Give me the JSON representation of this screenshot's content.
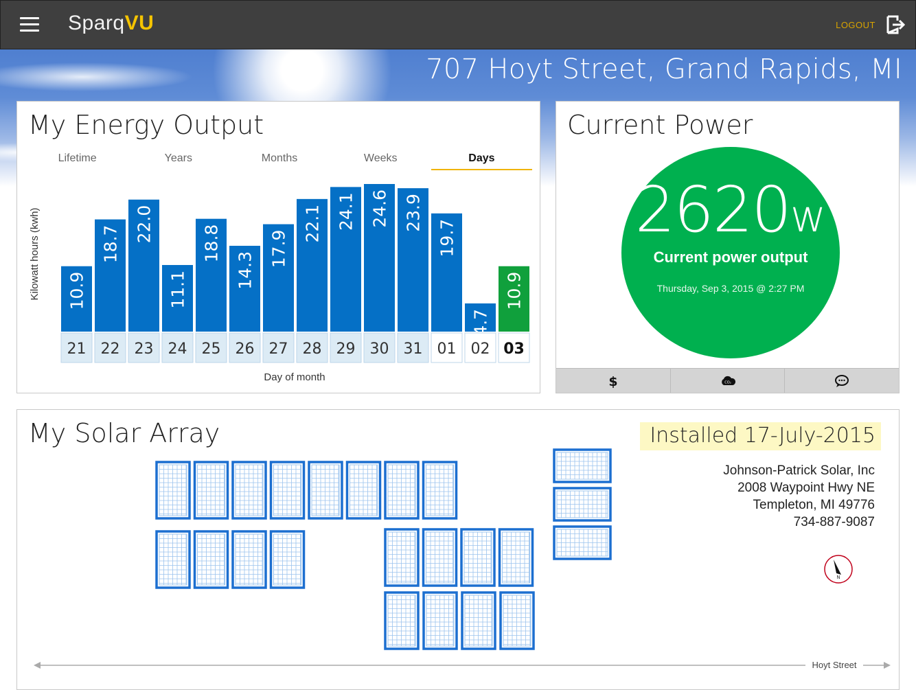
{
  "header": {
    "brand_prefix": "Sparq",
    "brand_suffix": "VU",
    "logout_label": "LOGOUT"
  },
  "address": "707 Hoyt Street, Grand Rapids, MI",
  "energy": {
    "title": "My Energy Output",
    "tabs": [
      {
        "label": "Lifetime",
        "active": false
      },
      {
        "label": "Years",
        "active": false
      },
      {
        "label": "Months",
        "active": false
      },
      {
        "label": "Weeks",
        "active": false
      },
      {
        "label": "Days",
        "active": true
      }
    ]
  },
  "chart_data": {
    "type": "bar",
    "categories": [
      "21",
      "22",
      "23",
      "24",
      "25",
      "26",
      "27",
      "28",
      "29",
      "30",
      "31",
      "01",
      "02",
      "03"
    ],
    "values": [
      10.9,
      18.7,
      22.0,
      11.1,
      18.8,
      14.3,
      17.9,
      22.1,
      24.1,
      24.6,
      23.9,
      19.7,
      4.7,
      10.9
    ],
    "highlight_index": 13,
    "xlabel": "Day of month",
    "ylabel": "Kilowatt hours (kwh)",
    "colors": {
      "bar": "#0570c6",
      "highlight": "#10a03c"
    }
  },
  "power": {
    "title": "Current Power",
    "value": "2620",
    "unit": "w",
    "label": "Current power output",
    "timestamp": "Thursday, Sep 3, 2015 @ 2:27 PM",
    "actions": [
      {
        "icon": "dollar-icon"
      },
      {
        "icon": "co2-icon"
      },
      {
        "icon": "chat-icon"
      }
    ]
  },
  "array": {
    "title": "My Solar Array",
    "installed": "Installed 17-July-2015",
    "installer": {
      "name": "Johnson-Patrick Solar, Inc",
      "street": "2008 Waypoint Hwy NE",
      "city": "Templeton, MI 49776",
      "phone": "734-887-9087"
    },
    "compass_label": "N",
    "street_label": "Hoyt Street",
    "colors": {
      "panel_border": "#1c6fd0",
      "panel_grid": "#9cc4ee"
    }
  }
}
